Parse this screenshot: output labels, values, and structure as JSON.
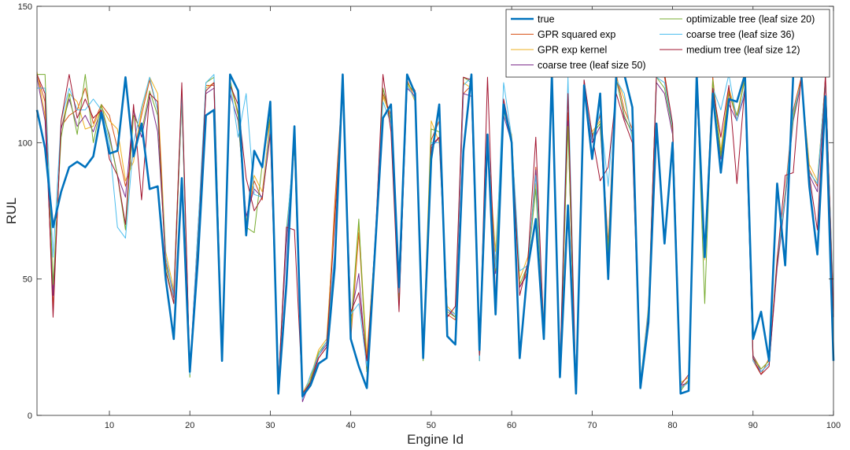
{
  "chart_data": {
    "type": "line",
    "xlabel": "Engine Id",
    "ylabel": "RUL",
    "xlim": [
      1,
      100
    ],
    "ylim": [
      0,
      150
    ],
    "xticks": [
      10,
      20,
      30,
      40,
      50,
      60,
      70,
      80,
      90,
      100
    ],
    "yticks": [
      0,
      50,
      100,
      150
    ],
    "grid": false,
    "legend": {
      "placement": "top-right",
      "columns": 2
    },
    "x": [
      1,
      2,
      3,
      4,
      5,
      6,
      7,
      8,
      9,
      10,
      11,
      12,
      13,
      14,
      15,
      16,
      17,
      18,
      19,
      20,
      21,
      22,
      23,
      24,
      25,
      26,
      27,
      28,
      29,
      30,
      31,
      32,
      33,
      34,
      35,
      36,
      37,
      38,
      39,
      40,
      41,
      42,
      43,
      44,
      45,
      46,
      47,
      48,
      49,
      50,
      51,
      52,
      53,
      54,
      55,
      56,
      57,
      58,
      59,
      60,
      61,
      62,
      63,
      64,
      65,
      66,
      67,
      68,
      69,
      70,
      71,
      72,
      73,
      74,
      75,
      76,
      77,
      78,
      79,
      80,
      81,
      82,
      83,
      84,
      85,
      86,
      87,
      88,
      89,
      90,
      91,
      92,
      93,
      94,
      95,
      96,
      97,
      98,
      99,
      100
    ],
    "series": [
      {
        "name": "true",
        "color": "#0072BD",
        "width": 2.6,
        "values": [
          112,
          98,
          69,
          82,
          91,
          93,
          91,
          95,
          111,
          96,
          97,
          124,
          95,
          107,
          83,
          84,
          50,
          28,
          87,
          16,
          57,
          110,
          112,
          20,
          125,
          119,
          66,
          97,
          91,
          115,
          8,
          48,
          106,
          7,
          11,
          19,
          21,
          54,
          125,
          28,
          18,
          10,
          60,
          109,
          114,
          47,
          125,
          118,
          21,
          94,
          114,
          29,
          26,
          97,
          125,
          24,
          103,
          37,
          114,
          100,
          21,
          54,
          72,
          28,
          125,
          14,
          77,
          8,
          121,
          94,
          118,
          50,
          125,
          125,
          113,
          10,
          34,
          107,
          63,
          100,
          8,
          9,
          125,
          58,
          118,
          89,
          116,
          115,
          125,
          28,
          38,
          20,
          85,
          55,
          125,
          125,
          84,
          59,
          117,
          20
        ]
      },
      {
        "name": "GPR squared exp",
        "color": "#D95319",
        "width": 1,
        "values": [
          125,
          115,
          39,
          106,
          110,
          112,
          120,
          107,
          114,
          110,
          98,
          84,
          96,
          110,
          123,
          112,
          56,
          45,
          120,
          16,
          65,
          121,
          121,
          22,
          122,
          111,
          70,
          86,
          79,
          110,
          10,
          66,
          100,
          7,
          12,
          21,
          25,
          77,
          122,
          28,
          67,
          20,
          62,
          118,
          110,
          46,
          123,
          116,
          22,
          101,
          108,
          37,
          35,
          118,
          121,
          20,
          103,
          55,
          113,
          101,
          47,
          53,
          91,
          31,
          125,
          16,
          111,
          9,
          122,
          102,
          110,
          63,
          125,
          112,
          105,
          11,
          38,
          125,
          124,
          106,
          10,
          13,
          125,
          60,
          124,
          96,
          119,
          108,
          125,
          20,
          15,
          21,
          55,
          82,
          112,
          124,
          90,
          84,
          124,
          39
        ]
      },
      {
        "name": "GPR exp kernel",
        "color": "#EDB120",
        "width": 1,
        "values": [
          126,
          110,
          45,
          105,
          118,
          115,
          105,
          106,
          113,
          108,
          105,
          86,
          93,
          112,
          124,
          118,
          60,
          46,
          118,
          15,
          66,
          120,
          122,
          23,
          122,
          110,
          71,
          88,
          82,
          108,
          11,
          64,
          99,
          8,
          14,
          24,
          28,
          73,
          120,
          30,
          70,
          22,
          62,
          117,
          109,
          48,
          122,
          115,
          23,
          108,
          100,
          40,
          37,
          122,
          120,
          22,
          101,
          60,
          112,
          103,
          50,
          58,
          85,
          34,
          124,
          18,
          107,
          9,
          119,
          104,
          108,
          61,
          124,
          116,
          102,
          12,
          40,
          124,
          126,
          104,
          12,
          14,
          122,
          57,
          123,
          97,
          120,
          110,
          124,
          22,
          17,
          20,
          58,
          80,
          110,
          123,
          92,
          86,
          123,
          42
        ]
      },
      {
        "name": "coarse tree (leaf size 50)",
        "color": "#7E2F8E",
        "width": 1,
        "values": [
          124,
          108,
          44,
          105,
          116,
          106,
          110,
          104,
          112,
          103,
          88,
          80,
          112,
          102,
          117,
          104,
          58,
          43,
          116,
          16,
          68,
          118,
          120,
          21,
          118,
          108,
          73,
          83,
          80,
          104,
          12,
          62,
          99,
          5,
          13,
          22,
          26,
          58,
          120,
          36,
          52,
          16,
          63,
          120,
          108,
          40,
          120,
          117,
          22,
          98,
          102,
          39,
          36,
          118,
          117,
          21,
          102,
          52,
          110,
          100,
          47,
          52,
          90,
          30,
          125,
          17,
          108,
          8,
          119,
          100,
          106,
          59,
          124,
          109,
          104,
          11,
          36,
          122,
          118,
          103,
          11,
          12,
          120,
          60,
          117,
          94,
          114,
          108,
          118,
          22,
          16,
          19,
          54,
          79,
          108,
          122,
          88,
          82,
          122,
          38
        ]
      },
      {
        "name": "optimizable tree (leaf size 20)",
        "color": "#77AC30",
        "width": 1,
        "values": [
          125,
          125,
          48,
          102,
          118,
          103,
          125,
          100,
          114,
          102,
          88,
          68,
          110,
          104,
          119,
          110,
          55,
          41,
          116,
          14,
          65,
          122,
          124,
          23,
          123,
          110,
          69,
          67,
          92,
          110,
          11,
          68,
          98,
          7,
          13,
          23,
          27,
          55,
          122,
          32,
          72,
          16,
          60,
          120,
          108,
          42,
          122,
          118,
          20,
          105,
          104,
          38,
          36,
          124,
          122,
          20,
          98,
          53,
          112,
          100,
          48,
          55,
          83,
          32,
          124,
          16,
          106,
          9,
          121,
          103,
          107,
          60,
          123,
          110,
          103,
          11,
          37,
          124,
          120,
          105,
          9,
          13,
          124,
          41,
          123,
          95,
          118,
          110,
          123,
          21,
          17,
          20,
          56,
          80,
          109,
          123,
          89,
          85,
          123,
          40
        ]
      },
      {
        "name": "coarse tree (leaf size 36)",
        "color": "#4DBEEE",
        "width": 1,
        "values": [
          120,
          120,
          58,
          108,
          120,
          112,
          112,
          116,
          112,
          100,
          69,
          65,
          100,
          113,
          124,
          112,
          58,
          44,
          118,
          15,
          68,
          122,
          125,
          22,
          122,
          102,
          118,
          81,
          80,
          106,
          12,
          66,
          101,
          6,
          15,
          22,
          27,
          60,
          120,
          37,
          41,
          18,
          62,
          115,
          107,
          45,
          121,
          116,
          23,
          100,
          100,
          39,
          37,
          121,
          124,
          20,
          102,
          54,
          122,
          102,
          53,
          55,
          88,
          33,
          124,
          17,
          124,
          9,
          123,
          101,
          111,
          84,
          123,
          118,
          101,
          12,
          39,
          124,
          122,
          106,
          10,
          12,
          122,
          61,
          120,
          112,
          125,
          108,
          120,
          20,
          16,
          19,
          57,
          80,
          111,
          122,
          89,
          85,
          123,
          41
        ]
      },
      {
        "name": "medium tree (leaf size 12)",
        "color": "#A2142F",
        "width": 1,
        "values": [
          125,
          118,
          36,
          108,
          125,
          109,
          116,
          109,
          112,
          94,
          88,
          70,
          114,
          79,
          118,
          115,
          53,
          41,
          122,
          16,
          62,
          119,
          122,
          21,
          121,
          114,
          87,
          75,
          80,
          103,
          10,
          69,
          68,
          8,
          12,
          21,
          25,
          70,
          121,
          38,
          45,
          20,
          60,
          125,
          104,
          38,
          124,
          119,
          22,
          99,
          102,
          36,
          40,
          124,
          123,
          22,
          124,
          42,
          116,
          101,
          44,
          56,
          102,
          29,
          125,
          16,
          118,
          8,
          123,
          103,
          86,
          91,
          118,
          108,
          100,
          10,
          37,
          125,
          125,
          107,
          11,
          15,
          119,
          59,
          120,
          102,
          121,
          85,
          121,
          21,
          15,
          18,
          57,
          88,
          89,
          125,
          88,
          68,
          125,
          36
        ]
      }
    ]
  }
}
